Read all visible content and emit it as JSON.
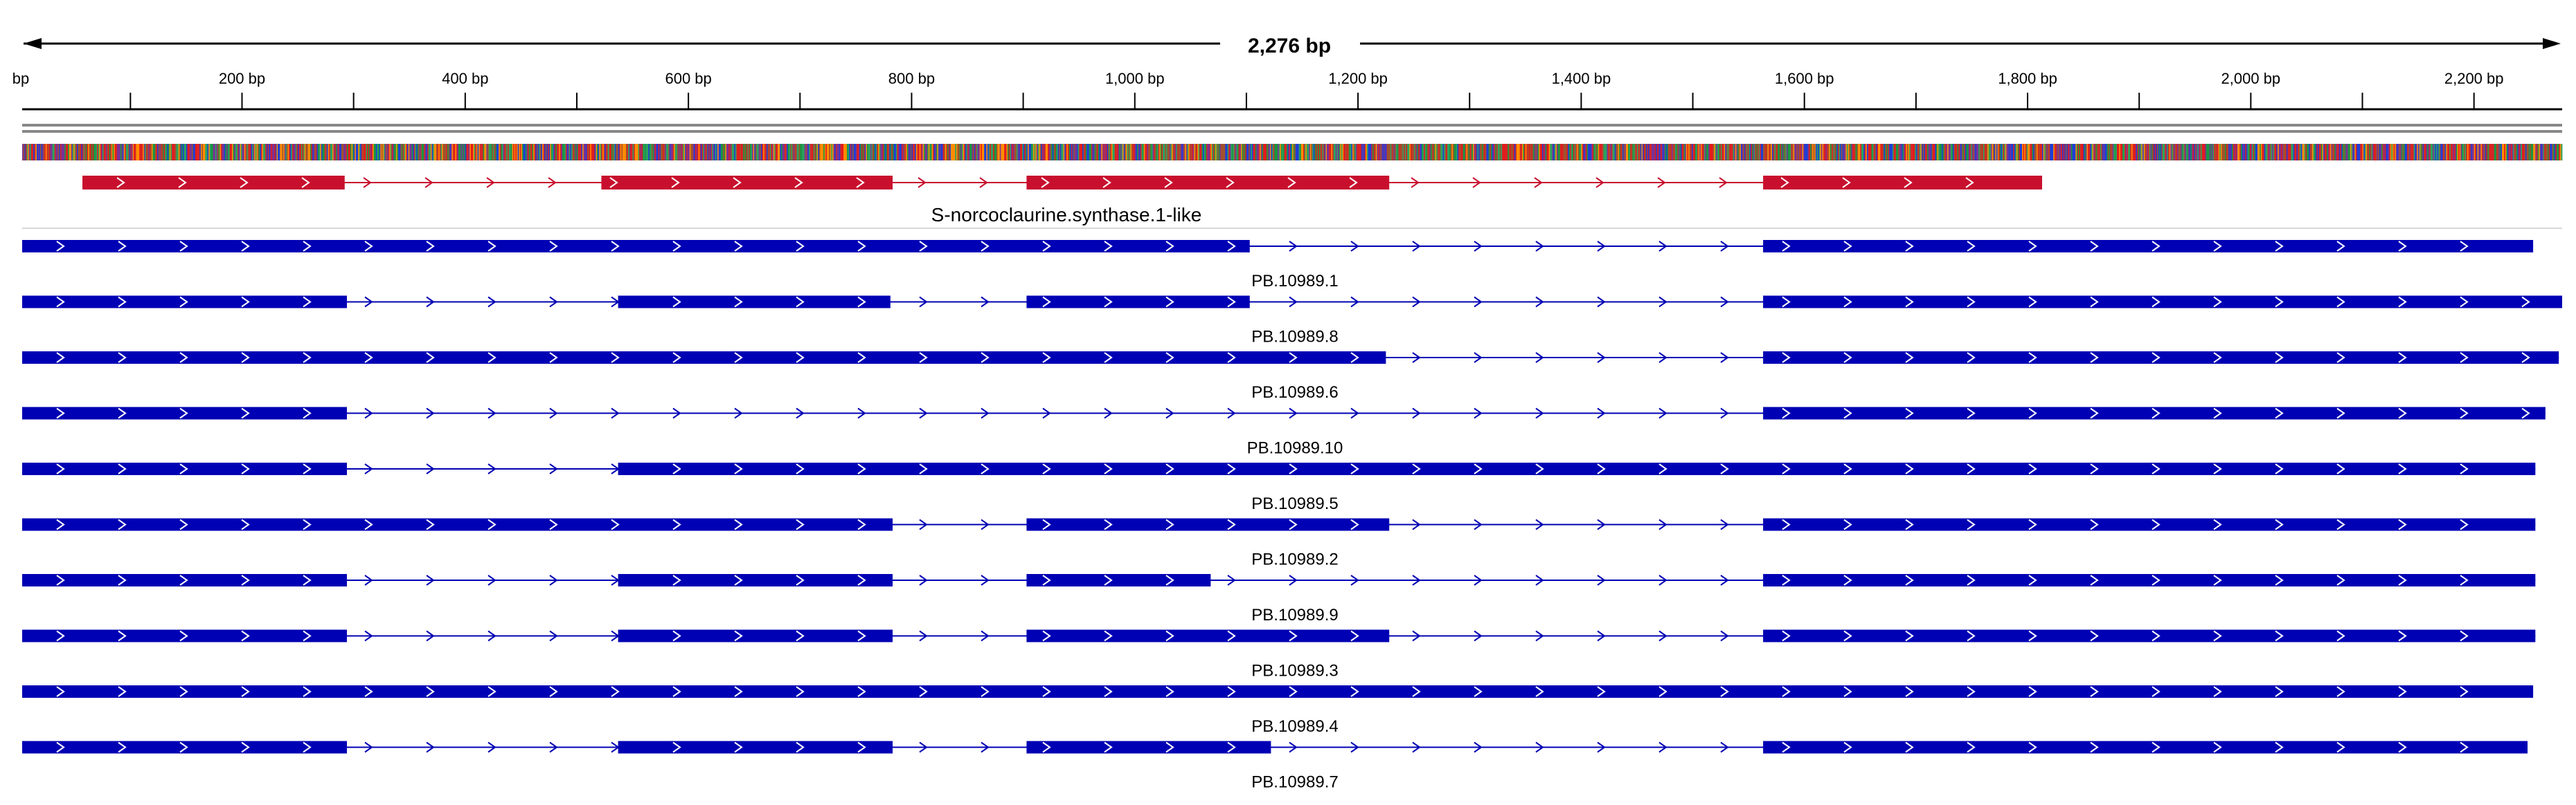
{
  "ruler": {
    "span_label": "2,276 bp",
    "span_bp": 2276,
    "view_start_bp": 3,
    "view_end_bp": 2279,
    "first_label_fragment": "bp",
    "ticks": [
      {
        "bp": 200,
        "label": "200 bp"
      },
      {
        "bp": 400,
        "label": "400 bp"
      },
      {
        "bp": 600,
        "label": "600 bp"
      },
      {
        "bp": 800,
        "label": "800 bp"
      },
      {
        "bp": 1000,
        "label": "1,000 bp"
      },
      {
        "bp": 1200,
        "label": "1,200 bp"
      },
      {
        "bp": 1400,
        "label": "1,400 bp"
      },
      {
        "bp": 1600,
        "label": "1,600 bp"
      },
      {
        "bp": 1800,
        "label": "1,800 bp"
      },
      {
        "bp": 2000,
        "label": "2,000 bp"
      },
      {
        "bp": 2200,
        "label": "2,200 bp"
      }
    ]
  },
  "colors": {
    "gene": "#c8102e",
    "transcript": "#0000b4",
    "line": "#000000",
    "bases": [
      "#e41a1c",
      "#1f3fd6",
      "#1a9641",
      "#ff8c00",
      "#a0522d",
      "#7b3294",
      "#2ca25f",
      "#d62728"
    ]
  },
  "gene": {
    "name": "S-norcoclaurine.synthase.1-like",
    "strand": "+",
    "exons": [
      [
        57,
        292
      ],
      [
        522,
        783
      ],
      [
        903,
        1228
      ],
      [
        1563,
        1813
      ]
    ]
  },
  "transcripts": [
    {
      "name": "PB.10989.1",
      "exons": [
        [
          3,
          1103
        ],
        [
          1563,
          2253
        ]
      ]
    },
    {
      "name": "PB.10989.8",
      "exons": [
        [
          3,
          294
        ],
        [
          537,
          781
        ],
        [
          903,
          1103
        ],
        [
          1563,
          2279
        ]
      ]
    },
    {
      "name": "PB.10989.6",
      "exons": [
        [
          3,
          1225
        ],
        [
          1563,
          2276
        ]
      ]
    },
    {
      "name": "PB.10989.10",
      "exons": [
        [
          3,
          294
        ],
        [
          1563,
          2264
        ]
      ]
    },
    {
      "name": "PB.10989.5",
      "exons": [
        [
          3,
          294
        ],
        [
          537,
          2255
        ]
      ]
    },
    {
      "name": "PB.10989.2",
      "exons": [
        [
          3,
          783
        ],
        [
          903,
          1228
        ],
        [
          1563,
          2255
        ]
      ]
    },
    {
      "name": "PB.10989.9",
      "exons": [
        [
          3,
          294
        ],
        [
          537,
          783
        ],
        [
          903,
          1068
        ],
        [
          1563,
          2255
        ]
      ]
    },
    {
      "name": "PB.10989.3",
      "exons": [
        [
          3,
          294
        ],
        [
          537,
          783
        ],
        [
          903,
          1228
        ],
        [
          1563,
          2255
        ]
      ]
    },
    {
      "name": "PB.10989.4",
      "exons": [
        [
          3,
          2253
        ]
      ]
    },
    {
      "name": "PB.10989.7",
      "exons": [
        [
          3,
          294
        ],
        [
          537,
          783
        ],
        [
          903,
          1122
        ],
        [
          1563,
          2248
        ]
      ]
    }
  ]
}
